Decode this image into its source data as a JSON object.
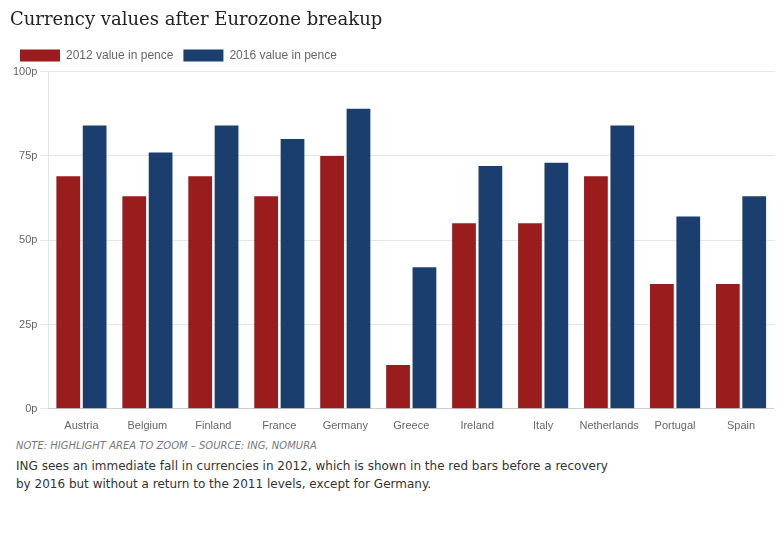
{
  "chart_data": {
    "type": "bar",
    "title": "Currency values after Eurozone breakup",
    "categories": [
      "Austria",
      "Belgium",
      "Finland",
      "France",
      "Germany",
      "Greece",
      "Ireland",
      "Italy",
      "Netherlands",
      "Portugal",
      "Spain"
    ],
    "series": [
      {
        "name": "2012 value in pence",
        "color": "#9b1c1c",
        "values": [
          69,
          63,
          69,
          63,
          75,
          13,
          55,
          55,
          69,
          37,
          37
        ]
      },
      {
        "name": "2016 value in pence",
        "color": "#1a3f6f",
        "values": [
          84,
          76,
          84,
          80,
          89,
          42,
          72,
          73,
          84,
          57,
          63
        ]
      }
    ],
    "ylim": [
      0,
      100
    ],
    "yticks": [
      {
        "value": 0,
        "label": "0p"
      },
      {
        "value": 25,
        "label": "25p"
      },
      {
        "value": 50,
        "label": "50p"
      },
      {
        "value": 75,
        "label": "75p"
      },
      {
        "value": 100,
        "label": "100p"
      }
    ],
    "grid": true,
    "legend": "top",
    "annotations": [
      "NOTE: HIGHLIGHT AREA TO ZOOM – SOURCE: ING, NOMURA",
      "ING sees an immediate fall in currencies in 2012, which is shown in the red bars before a recovery\nby 2016 but without a return to the 2011 levels, except for Germany."
    ]
  }
}
